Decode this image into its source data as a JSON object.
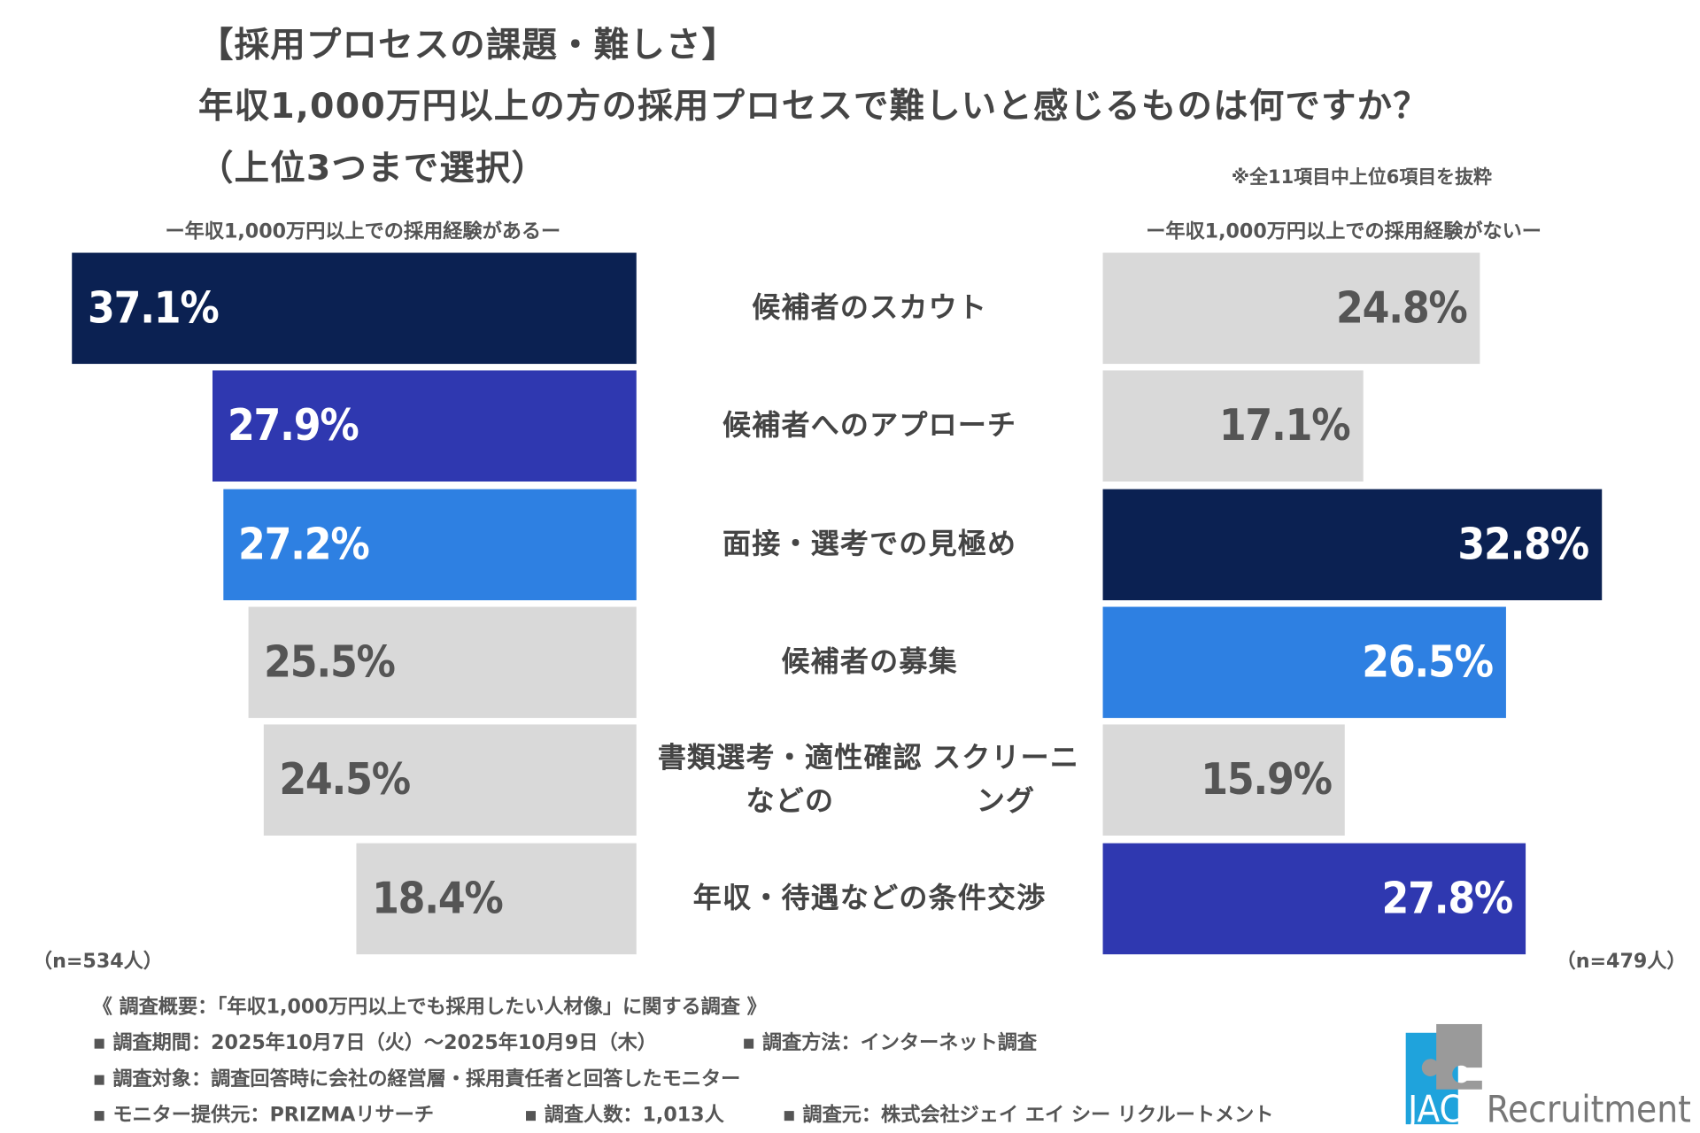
{
  "title": {
    "line1": "【採用プロセスの課題・難しさ】",
    "line2": "年収1,000万円以上の方の採用プロセスで難しいと感じるものは何ですか？",
    "line3": "（上位3つまで選択）"
  },
  "note": "※全11項目中上位6項目を抜粋",
  "colors": {
    "navy": "#0b2152",
    "royal": "#2f38b0",
    "blue": "#2e80e2",
    "grey": "#d9d9d9"
  },
  "chart_data": {
    "type": "bar",
    "orientation": "horizontal-butterfly",
    "unit": "%",
    "categories": [
      "候補者のスカウト",
      "候補者へのアプローチ",
      "面接・選考での見極め",
      "候補者の募集",
      "書類選考・適性確認などの\nスクリーニング",
      "年収・待遇などの条件交渉"
    ],
    "series": [
      {
        "name": "ー年収1,000万円以上での採用経験があるー",
        "n": "（n=534人）",
        "values": [
          37.1,
          27.9,
          27.2,
          25.5,
          24.5,
          18.4
        ],
        "labels": [
          "37.1%",
          "27.9%",
          "27.2%",
          "25.5%",
          "24.5%",
          "18.4%"
        ],
        "colors": [
          "navy",
          "royal",
          "blue",
          "grey",
          "grey",
          "grey"
        ]
      },
      {
        "name": "ー年収1,000万円以上での採用経験がないー",
        "n": "（n=479人）",
        "values": [
          24.8,
          17.1,
          32.8,
          26.5,
          15.9,
          27.8
        ],
        "labels": [
          "24.8%",
          "17.1%",
          "32.8%",
          "26.5%",
          "15.9%",
          "27.8%"
        ],
        "colors": [
          "grey",
          "grey",
          "navy",
          "blue",
          "grey",
          "royal"
        ]
      }
    ]
  },
  "footer": {
    "heading": "《 調査概要：「年収1,000万円以上でも採用したい人材像」に関する調査 》",
    "period": "▪ 調査期間：2025年10月7日（火）～2025年10月9日（木）",
    "method": "▪ 調査方法：インターネット調査",
    "target": "▪ 調査対象：調査回答時に会社の経営層・採用責任者と回答したモニター",
    "provider": "▪ モニター提供元：PRIZMAリサーチ",
    "count": "▪ 調査人数：1,013人",
    "source": "▪ 調査元：株式会社ジェイ エイ シー リクルートメント"
  },
  "logo": {
    "text1": "JAC",
    "text2": "Recruitment"
  }
}
